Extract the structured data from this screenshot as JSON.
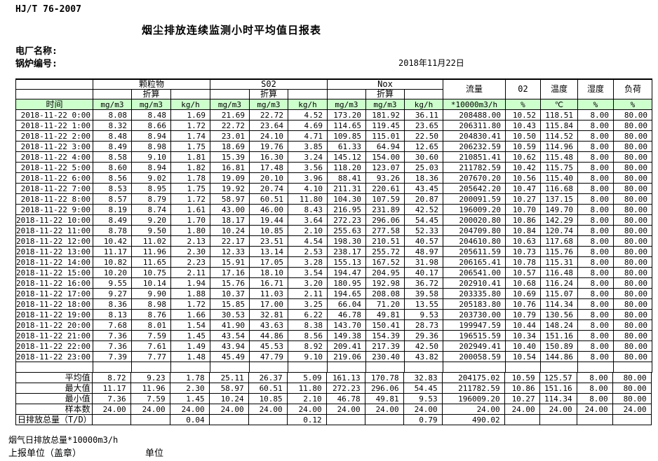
{
  "page": {
    "doc_code": "HJ/T 76-2007",
    "title": "烟尘排放连续监测小时平均值日报表",
    "plant_name_label": "电厂名称:",
    "boiler_no_label": "锅炉编号:",
    "report_date": "2018年11月22日"
  },
  "table": {
    "time_label": "时间",
    "converted_label": "折算",
    "groups": {
      "particulate": "颗粒物",
      "so2": "S02",
      "nox": "Nox"
    },
    "scalar_columns": {
      "flow": "流量",
      "o2": "02",
      "temperature": "温度",
      "humidity": "湿度",
      "load": "负荷"
    },
    "units": [
      "mg/m3",
      "mg/m3",
      "kg/h",
      "mg/m3",
      "mg/m3",
      "kg/h",
      "mg/m3",
      "mg/m3",
      "kg/h",
      "*10000m3/h",
      "%",
      "℃",
      "%",
      "%"
    ],
    "rows": [
      {
        "time": "2018-11-22 0:00",
        "values": [
          "8.08",
          "8.48",
          "1.69",
          "21.69",
          "22.72",
          "4.52",
          "173.20",
          "181.92",
          "36.11",
          "208488.00",
          "10.52",
          "118.51",
          "8.00",
          "80.00"
        ]
      },
      {
        "time": "2018-11-22 1:00",
        "values": [
          "8.32",
          "8.66",
          "1.72",
          "22.72",
          "23.64",
          "4.69",
          "114.65",
          "119.45",
          "23.65",
          "206311.80",
          "10.43",
          "115.84",
          "8.00",
          "80.00"
        ]
      },
      {
        "time": "2018-11-22 2:00",
        "values": [
          "8.48",
          "8.94",
          "1.74",
          "23.01",
          "24.10",
          "4.71",
          "109.85",
          "115.01",
          "22.50",
          "204830.41",
          "10.50",
          "114.52",
          "8.00",
          "80.00"
        ]
      },
      {
        "time": "2018-11-22 3:00",
        "values": [
          "8.49",
          "8.98",
          "1.75",
          "18.69",
          "19.76",
          "3.85",
          "61.33",
          "64.94",
          "12.65",
          "206232.59",
          "10.59",
          "114.96",
          "8.00",
          "80.00"
        ]
      },
      {
        "time": "2018-11-22 4:00",
        "values": [
          "8.58",
          "9.10",
          "1.81",
          "15.39",
          "16.30",
          "3.24",
          "145.12",
          "154.00",
          "30.60",
          "210851.41",
          "10.62",
          "115.48",
          "8.00",
          "80.00"
        ]
      },
      {
        "time": "2018-11-22 5:00",
        "values": [
          "8.60",
          "8.94",
          "1.82",
          "16.81",
          "17.48",
          "3.56",
          "118.20",
          "123.07",
          "25.03",
          "211782.59",
          "10.42",
          "115.75",
          "8.00",
          "80.00"
        ]
      },
      {
        "time": "2018-11-22 6:00",
        "values": [
          "8.56",
          "9.02",
          "1.78",
          "19.09",
          "20.10",
          "3.96",
          "88.41",
          "93.26",
          "18.36",
          "207670.20",
          "10.56",
          "115.40",
          "8.00",
          "80.00"
        ]
      },
      {
        "time": "2018-11-22 7:00",
        "values": [
          "8.53",
          "8.95",
          "1.75",
          "19.92",
          "20.74",
          "4.10",
          "211.31",
          "220.61",
          "43.45",
          "205642.20",
          "10.47",
          "116.68",
          "8.00",
          "80.00"
        ]
      },
      {
        "time": "2018-11-22 8:00",
        "values": [
          "8.57",
          "8.79",
          "1.72",
          "58.97",
          "60.51",
          "11.80",
          "104.30",
          "107.59",
          "20.87",
          "200091.59",
          "10.27",
          "137.15",
          "8.00",
          "80.00"
        ]
      },
      {
        "time": "2018-11-22 9:00",
        "values": [
          "8.19",
          "8.74",
          "1.61",
          "43.00",
          "46.00",
          "8.43",
          "216.95",
          "231.89",
          "42.52",
          "196009.20",
          "10.70",
          "149.70",
          "8.00",
          "80.00"
        ]
      },
      {
        "time": "2018-11-22 10:00",
        "values": [
          "8.49",
          "9.20",
          "1.70",
          "18.17",
          "19.44",
          "3.64",
          "272.23",
          "296.06",
          "54.45",
          "200020.80",
          "10.86",
          "142.29",
          "8.00",
          "80.00"
        ]
      },
      {
        "time": "2018-11-22 11:00",
        "values": [
          "8.78",
          "9.50",
          "1.80",
          "10.24",
          "10.85",
          "2.10",
          "255.63",
          "277.58",
          "52.33",
          "204709.80",
          "10.84",
          "120.74",
          "8.00",
          "80.00"
        ]
      },
      {
        "time": "2018-11-22 12:00",
        "values": [
          "10.42",
          "11.02",
          "2.13",
          "22.17",
          "23.51",
          "4.54",
          "198.30",
          "210.51",
          "40.57",
          "204610.80",
          "10.63",
          "117.68",
          "8.00",
          "80.00"
        ]
      },
      {
        "time": "2018-11-22 13:00",
        "values": [
          "11.17",
          "11.96",
          "2.30",
          "12.33",
          "13.14",
          "2.53",
          "238.17",
          "255.72",
          "48.97",
          "205611.59",
          "10.73",
          "115.76",
          "8.00",
          "80.00"
        ]
      },
      {
        "time": "2018-11-22 14:00",
        "values": [
          "10.82",
          "11.65",
          "2.23",
          "15.91",
          "17.05",
          "3.28",
          "155.13",
          "167.52",
          "31.98",
          "206165.41",
          "10.78",
          "115.31",
          "8.00",
          "80.00"
        ]
      },
      {
        "time": "2018-11-22 15:00",
        "values": [
          "10.20",
          "10.75",
          "2.11",
          "17.16",
          "18.10",
          "3.54",
          "194.47",
          "204.95",
          "40.17",
          "206541.00",
          "10.57",
          "116.48",
          "8.00",
          "80.00"
        ]
      },
      {
        "time": "2018-11-22 16:00",
        "values": [
          "9.55",
          "10.14",
          "1.94",
          "15.76",
          "16.71",
          "3.20",
          "180.95",
          "192.98",
          "36.72",
          "202910.41",
          "10.68",
          "116.24",
          "8.00",
          "80.00"
        ]
      },
      {
        "time": "2018-11-22 17:00",
        "values": [
          "9.27",
          "9.90",
          "1.88",
          "10.37",
          "11.03",
          "2.11",
          "194.65",
          "208.08",
          "39.58",
          "203335.80",
          "10.69",
          "115.07",
          "8.00",
          "80.00"
        ]
      },
      {
        "time": "2018-11-22 18:00",
        "values": [
          "8.36",
          "8.98",
          "1.72",
          "15.85",
          "17.00",
          "3.25",
          "66.04",
          "71.20",
          "13.55",
          "205183.80",
          "10.76",
          "114.34",
          "8.00",
          "80.00"
        ]
      },
      {
        "time": "2018-11-22 19:00",
        "values": [
          "8.13",
          "8.76",
          "1.66",
          "30.53",
          "32.81",
          "6.22",
          "46.78",
          "49.81",
          "9.53",
          "203730.00",
          "10.79",
          "130.56",
          "8.00",
          "80.00"
        ]
      },
      {
        "time": "2018-11-22 20:00",
        "values": [
          "7.68",
          "8.01",
          "1.54",
          "41.90",
          "43.63",
          "8.38",
          "143.70",
          "150.41",
          "28.73",
          "199947.59",
          "10.44",
          "148.24",
          "8.00",
          "80.00"
        ]
      },
      {
        "time": "2018-11-22 21:00",
        "values": [
          "7.36",
          "7.59",
          "1.45",
          "43.54",
          "44.86",
          "8.56",
          "149.38",
          "154.39",
          "29.36",
          "196515.59",
          "10.34",
          "151.16",
          "8.00",
          "80.00"
        ]
      },
      {
        "time": "2018-11-22 22:00",
        "values": [
          "7.36",
          "7.61",
          "1.49",
          "43.94",
          "45.53",
          "8.92",
          "209.41",
          "217.39",
          "42.50",
          "202949.41",
          "10.40",
          "150.89",
          "8.00",
          "80.00"
        ]
      },
      {
        "time": "2018-11-22 23:00",
        "values": [
          "7.39",
          "7.77",
          "1.48",
          "45.49",
          "47.79",
          "9.10",
          "219.06",
          "230.40",
          "43.82",
          "200058.59",
          "10.54",
          "144.86",
          "8.00",
          "80.00"
        ]
      }
    ],
    "summary_rows": [
      {
        "label": "平均值",
        "align": "right",
        "values": [
          "8.72",
          "9.23",
          "1.78",
          "25.11",
          "26.37",
          "5.09",
          "161.13",
          "170.78",
          "32.83",
          "204175.02",
          "10.59",
          "125.57",
          "8.00",
          "80.00"
        ]
      },
      {
        "label": "最大值",
        "align": "right",
        "values": [
          "11.17",
          "11.96",
          "2.30",
          "58.97",
          "60.51",
          "11.80",
          "272.23",
          "296.06",
          "54.45",
          "211782.59",
          "10.86",
          "151.16",
          "8.00",
          "80.00"
        ]
      },
      {
        "label": "最小值",
        "align": "right",
        "values": [
          "7.36",
          "7.59",
          "1.45",
          "10.24",
          "10.85",
          "2.10",
          "46.78",
          "49.81",
          "9.53",
          "196009.20",
          "10.27",
          "114.34",
          "8.00",
          "80.00"
        ]
      },
      {
        "label": "样本数",
        "align": "right",
        "values": [
          "24.00",
          "24.00",
          "24.00",
          "24.00",
          "24.00",
          "24.00",
          "24.00",
          "24.00",
          "24.00",
          "24.00",
          "24.00",
          "24.00",
          "24.00",
          "24.00"
        ]
      },
      {
        "label": "日排放总量（T/D）",
        "align": "left",
        "values": [
          "",
          "",
          "0.04",
          "",
          "",
          "0.12",
          "",
          "",
          "0.79",
          "490.02",
          "",
          "",
          "",
          ""
        ]
      }
    ]
  },
  "footer": {
    "flue_gas_total_label": "烟气日排放总量*10000m3/h",
    "reporting_unit_label": "上报单位（盖章）",
    "unit_label": "单位"
  },
  "colors": {
    "header_green": "#ccffcc",
    "border": "#000000"
  }
}
